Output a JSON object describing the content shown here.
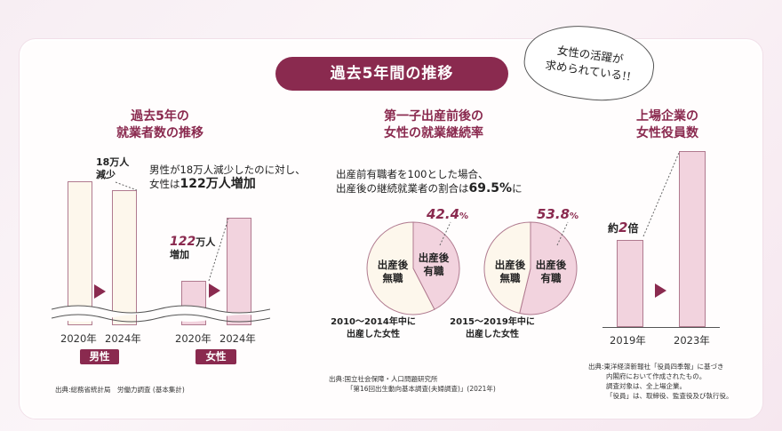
{
  "header": {
    "title": "過去5年間の推移",
    "bubble_line1": "女性の活躍が",
    "bubble_line2": "求められている!!"
  },
  "employment": {
    "title_line1": "過去5年の",
    "title_line2": "就業者数の推移",
    "note_line1": "男性が18万人減少したのに対し、",
    "note_line2_prefix": "女性は",
    "note_line2_bold": "122万人増加",
    "male_change_num": "18万人",
    "male_change_word": "減少",
    "female_change_num": "122",
    "female_change_unit": "万人",
    "female_change_word": "増加",
    "years_male": [
      "2020年",
      "2024年"
    ],
    "years_female": [
      "2020年",
      "2024年"
    ],
    "male_tag": "男性",
    "female_tag": "女性",
    "source": "出典:総務省統計局　労働力調査 (基本集計)"
  },
  "continuation": {
    "title_line1": "第一子出産前後の",
    "title_line2": "女性の就業継続率",
    "note_line1": "出産前有職者を100とした場合、",
    "note_line2_prefix": "出産後の継続就業者の割合は",
    "note_line2_bold": "69.5%",
    "note_line2_suffix": "に",
    "pie1_pct": "42.4",
    "pie2_pct": "53.8",
    "pct_unit": "%",
    "label_unemployed_1": "出産後",
    "label_unemployed_2": "無職",
    "label_employed_1": "出産後",
    "label_employed_2": "有職",
    "pie1_caption_1": "2010〜2014年中に",
    "pie1_caption_2": "出産した女性",
    "pie2_caption_1": "2015〜2019年中に",
    "pie2_caption_2": "出産した女性",
    "source_line1": "出典:国立社会保障・人口問題研究所",
    "source_line2": "「第16回出生動向基本調査(夫婦調査)」(2021年)"
  },
  "executives": {
    "title_line1": "上場企業の",
    "title_line2": "女性役員数",
    "multiplier_prefix": "約",
    "multiplier_num": "2",
    "multiplier_suffix": "倍",
    "years": [
      "2019年",
      "2023年"
    ],
    "source_line1": "出典:東洋経済新報社「役員四季報」に基づき",
    "source_line2": "内閣府において作成されたもの。",
    "source_line3": "調査対象は、全上場企業。",
    "source_line4": "「役員」は、取締役、監査役及び執行役。"
  },
  "chart_data": [
    {
      "type": "pie",
      "title": "",
      "categories": [
        "出産後有職",
        "出産後無職"
      ],
      "values": [
        42.4,
        57.6
      ],
      "caption": "2010〜2014年中に出産した女性"
    },
    {
      "type": "pie",
      "title": "",
      "categories": [
        "出産後有職",
        "出産後無職"
      ],
      "values": [
        53.8,
        46.2
      ],
      "caption": "2015〜2019年中に出産した女性"
    }
  ],
  "colors": {
    "accent": "#8a2a4f",
    "employed_fill": "#f2d3de",
    "unemployed_fill": "#fdf7ec"
  }
}
